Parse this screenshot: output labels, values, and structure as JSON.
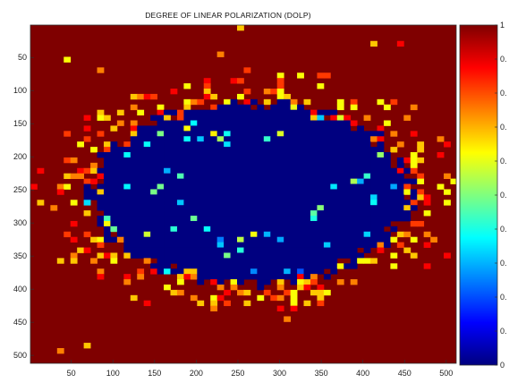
{
  "chart_data": {
    "type": "heatmap",
    "title": "DEGREE OF LINEAR POLARIZATION (DOLP)",
    "xlabel": "",
    "ylabel": "",
    "xlim": [
      1,
      512
    ],
    "ylim": [
      512,
      1
    ],
    "x_ticks": [
      50,
      100,
      150,
      200,
      250,
      300,
      350,
      400,
      450,
      500
    ],
    "y_ticks": [
      50,
      100,
      150,
      200,
      250,
      300,
      350,
      400,
      450,
      500
    ],
    "colorbar": {
      "range": [
        0,
        1
      ],
      "colormap": "jet",
      "tick_labels": [
        "1",
        "0.",
        "0.",
        "0.",
        "0.",
        "0.",
        "0.",
        "0.",
        "0.",
        "0.",
        "0"
      ]
    },
    "regions": [
      {
        "description": "background level",
        "value": 1.0
      },
      {
        "description": "central elliptical region level",
        "value": 0.0,
        "center": [
          265,
          255
        ],
        "radii": [
          190,
          135
        ]
      },
      {
        "description": "speckle levels in ring around ellipse",
        "values": [
          0.62,
          0.68,
          0.75,
          0.82,
          0.88
        ]
      }
    ]
  }
}
